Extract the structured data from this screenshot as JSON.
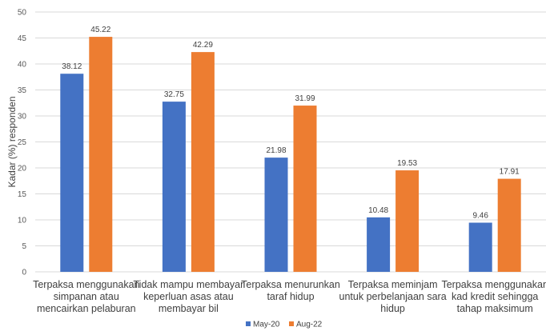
{
  "chart_data": {
    "type": "bar",
    "title": "",
    "xlabel": "",
    "ylabel": "Kadar (%) responden",
    "ylim": [
      0,
      50
    ],
    "yticks": [
      0,
      5,
      10,
      15,
      20,
      25,
      30,
      35,
      40,
      45,
      50
    ],
    "grid": true,
    "legend_position": "bottom",
    "categories": [
      [
        "Terpaksa menggunakan",
        "simpanan atau",
        "mencairkan pelaburan"
      ],
      [
        "Tidak mampu membayar",
        "keperluan asas atau",
        "membayar bil"
      ],
      [
        "Terpaksa menurunkan",
        "taraf hidup"
      ],
      [
        "Terpaksa meminjam",
        "untuk perbelanjaan sara",
        "hidup"
      ],
      [
        "Terpaksa menggunakan",
        "kad kredit sehingga",
        "tahap maksimum"
      ]
    ],
    "series": [
      {
        "name": "May-20",
        "color": "#4472c4",
        "values": [
          38.12,
          32.75,
          21.98,
          10.48,
          9.46
        ],
        "labels": [
          "38.12",
          "32.75",
          "21.98",
          "10.48",
          "9.46"
        ]
      },
      {
        "name": "Aug-22",
        "color": "#ed7d31",
        "values": [
          45.22,
          42.29,
          31.99,
          19.53,
          17.91
        ],
        "labels": [
          "45.22",
          "42.29",
          "31.99",
          "19.53",
          "17.91"
        ]
      }
    ]
  }
}
